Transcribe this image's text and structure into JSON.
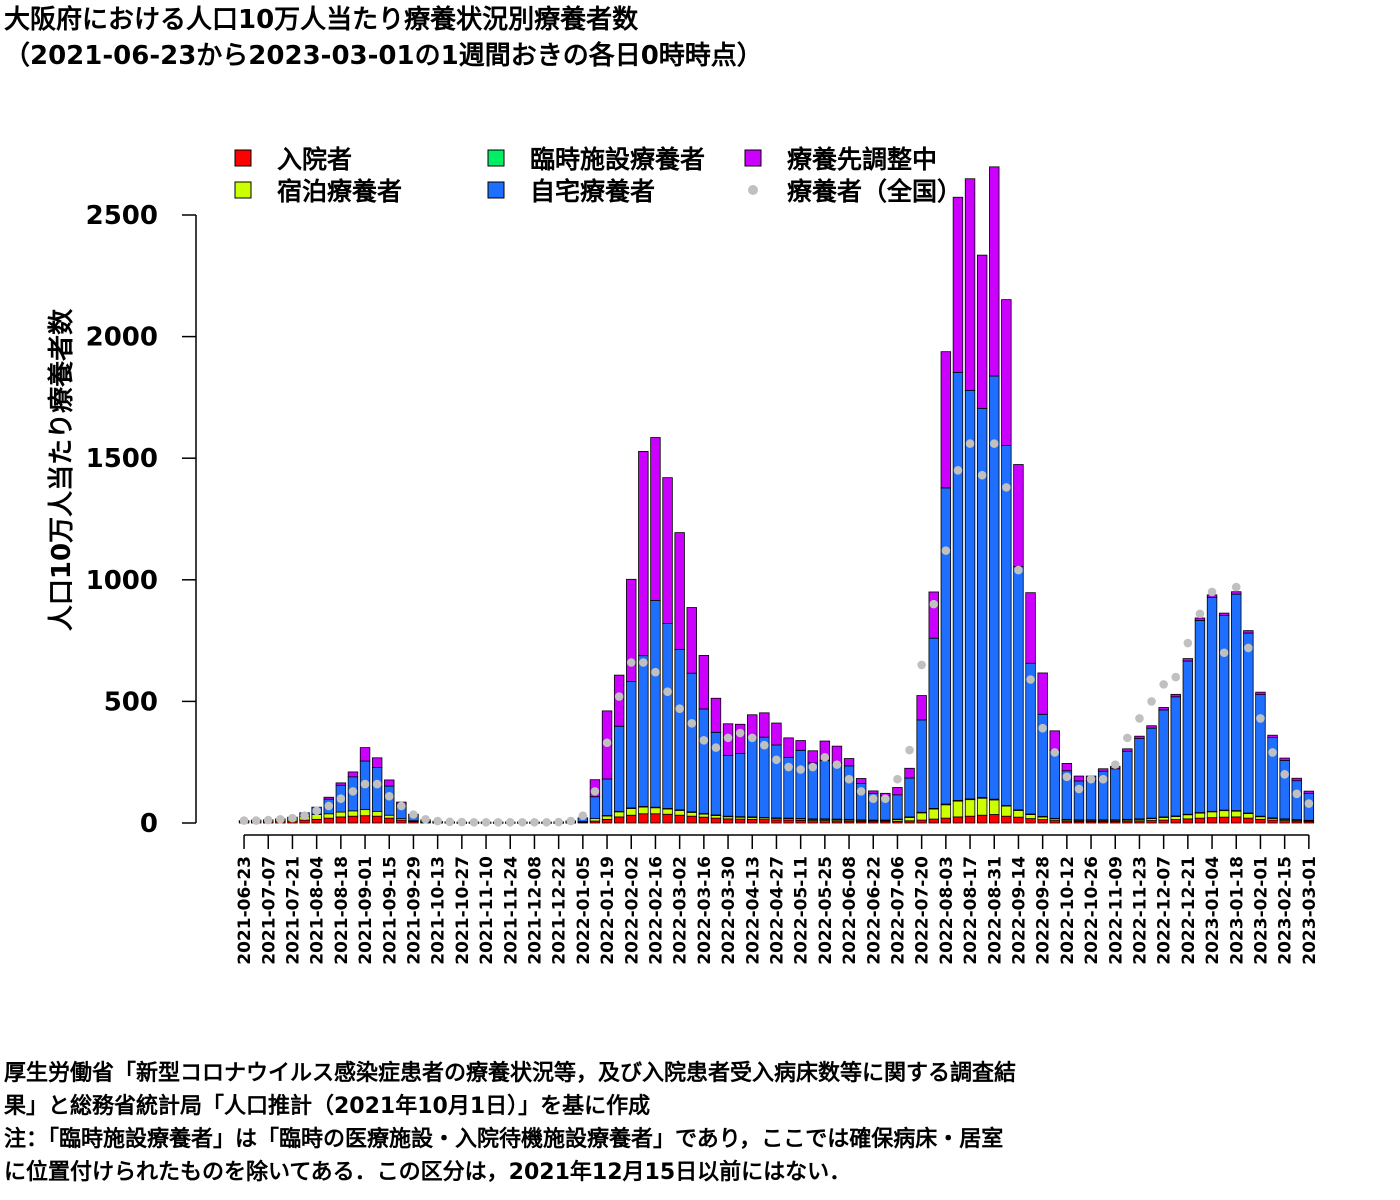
{
  "title": {
    "line1": "大阪府における人口10万人当たり療養状況別療養者数",
    "line2": "（2021-06-23から2023-03-01の1週間おきの各日0時時点）"
  },
  "notes": {
    "line1": "厚生労働省「新型コロナウイルス感染症患者の療養状況等，及び入院患者受入病床数等に関する調査結",
    "line2": "果」と総務省統計局「人口推計（2021年10月1日）」を基に作成",
    "line3": "注：「臨時施設療養者」は「臨時の医療施設・入院待機施設療養者」であり，ここでは確保病床・居室",
    "line4": "に位置付けられたものを除いてある．この区分は，2021年12月15日以前にはない．"
  },
  "chart_data": {
    "type": "bar",
    "stacked": true,
    "ylabel": "人口10万人当たり療養者数",
    "ylim": [
      0,
      2600
    ],
    "yticks": [
      0,
      500,
      1000,
      1500,
      2000,
      2500
    ],
    "legend_position": "top",
    "categories": [
      "2021-06-23",
      "2021-06-30",
      "2021-07-07",
      "2021-07-14",
      "2021-07-21",
      "2021-07-28",
      "2021-08-04",
      "2021-08-11",
      "2021-08-18",
      "2021-08-25",
      "2021-09-01",
      "2021-09-08",
      "2021-09-15",
      "2021-09-22",
      "2021-09-29",
      "2021-10-06",
      "2021-10-13",
      "2021-10-20",
      "2021-10-27",
      "2021-11-03",
      "2021-11-10",
      "2021-11-17",
      "2021-11-24",
      "2021-12-01",
      "2021-12-08",
      "2021-12-15",
      "2021-12-22",
      "2021-12-29",
      "2022-01-05",
      "2022-01-12",
      "2022-01-19",
      "2022-01-26",
      "2022-02-02",
      "2022-02-09",
      "2022-02-16",
      "2022-02-23",
      "2022-03-02",
      "2022-03-09",
      "2022-03-16",
      "2022-03-23",
      "2022-03-30",
      "2022-04-06",
      "2022-04-13",
      "2022-04-20",
      "2022-04-27",
      "2022-05-04",
      "2022-05-11",
      "2022-05-18",
      "2022-05-25",
      "2022-06-01",
      "2022-06-08",
      "2022-06-15",
      "2022-06-22",
      "2022-06-29",
      "2022-07-06",
      "2022-07-13",
      "2022-07-20",
      "2022-07-27",
      "2022-08-03",
      "2022-08-10",
      "2022-08-17",
      "2022-08-24",
      "2022-08-31",
      "2022-09-07",
      "2022-09-14",
      "2022-09-21",
      "2022-09-28",
      "2022-10-05",
      "2022-10-12",
      "2022-10-19",
      "2022-10-26",
      "2022-11-02",
      "2022-11-09",
      "2022-11-16",
      "2022-11-23",
      "2022-11-30",
      "2022-12-07",
      "2022-12-14",
      "2022-12-21",
      "2022-12-28",
      "2023-01-04",
      "2023-01-11",
      "2023-01-18",
      "2023-01-25",
      "2023-02-01",
      "2023-02-08",
      "2023-02-15",
      "2023-02-22",
      "2023-03-01"
    ],
    "tick_labels": [
      "2021-06-23",
      "2021-07-07",
      "2021-07-21",
      "2021-08-04",
      "2021-08-18",
      "2021-09-01",
      "2021-09-15",
      "2021-09-29",
      "2021-10-13",
      "2021-10-27",
      "2021-11-10",
      "2021-11-24",
      "2021-12-08",
      "2021-12-22",
      "2022-01-05",
      "2022-01-19",
      "2022-02-02",
      "2022-02-16",
      "2022-03-02",
      "2022-03-16",
      "2022-03-30",
      "2022-04-13",
      "2022-04-27",
      "2022-05-11",
      "2022-05-25",
      "2022-06-08",
      "2022-06-22",
      "2022-07-06",
      "2022-07-20",
      "2022-08-03",
      "2022-08-17",
      "2022-08-31",
      "2022-09-14",
      "2022-09-28",
      "2022-10-12",
      "2022-10-26",
      "2022-11-09",
      "2022-11-23",
      "2022-12-07",
      "2022-12-21",
      "2023-01-04",
      "2023-01-18",
      "2023-02-01",
      "2023-02-15",
      "2023-03-01"
    ],
    "series": [
      {
        "name": "入院者",
        "color": "#ff0000",
        "values": [
          5,
          5,
          5,
          6,
          8,
          12,
          15,
          20,
          25,
          28,
          30,
          28,
          20,
          12,
          6,
          3,
          2,
          2,
          1,
          1,
          1,
          1,
          1,
          1,
          1,
          1,
          1,
          2,
          3,
          8,
          15,
          25,
          32,
          38,
          38,
          36,
          32,
          28,
          24,
          20,
          17,
          16,
          15,
          14,
          13,
          12,
          11,
          10,
          10,
          9,
          8,
          7,
          6,
          6,
          7,
          9,
          12,
          16,
          20,
          25,
          28,
          32,
          35,
          28,
          24,
          18,
          14,
          10,
          8,
          7,
          7,
          7,
          7,
          8,
          9,
          10,
          12,
          14,
          17,
          20,
          22,
          24,
          25,
          20,
          15,
          12,
          10,
          8,
          6
        ]
      },
      {
        "name": "宿泊療養者",
        "color": "#ccff00",
        "values": [
          3,
          4,
          5,
          6,
          8,
          15,
          20,
          18,
          20,
          22,
          25,
          20,
          12,
          6,
          3,
          2,
          1,
          1,
          1,
          1,
          1,
          1,
          1,
          1,
          1,
          1,
          1,
          2,
          3,
          10,
          15,
          22,
          28,
          28,
          25,
          22,
          20,
          16,
          14,
          12,
          10,
          9,
          9,
          8,
          7,
          7,
          7,
          6,
          6,
          6,
          6,
          5,
          5,
          5,
          8,
          15,
          30,
          42,
          55,
          65,
          68,
          70,
          60,
          42,
          28,
          18,
          12,
          8,
          6,
          5,
          5,
          5,
          5,
          6,
          7,
          9,
          12,
          14,
          18,
          22,
          25,
          28,
          25,
          20,
          12,
          8,
          6,
          5,
          4
        ]
      },
      {
        "name": "臨時施設療養者",
        "color": "#00ee66",
        "values": [
          0,
          0,
          0,
          0,
          0,
          0,
          0,
          0,
          0,
          0,
          0,
          0,
          0,
          0,
          0,
          0,
          0,
          0,
          0,
          0,
          0,
          0,
          0,
          0,
          0,
          0,
          0,
          0,
          0,
          0,
          1,
          1,
          2,
          2,
          2,
          2,
          2,
          2,
          1,
          1,
          1,
          1,
          1,
          1,
          1,
          1,
          1,
          1,
          1,
          1,
          1,
          1,
          1,
          1,
          1,
          1,
          2,
          2,
          3,
          3,
          3,
          3,
          3,
          2,
          2,
          1,
          1,
          1,
          1,
          1,
          1,
          1,
          1,
          1,
          1,
          1,
          1,
          1,
          1,
          1,
          1,
          1,
          1,
          1,
          1,
          1,
          1,
          1,
          1
        ]
      },
      {
        "name": "自宅療養者",
        "color": "#1e6fff",
        "values": [
          2,
          3,
          3,
          5,
          8,
          15,
          30,
          60,
          110,
          140,
          200,
          180,
          120,
          60,
          25,
          8,
          4,
          2,
          2,
          2,
          2,
          2,
          2,
          2,
          2,
          2,
          3,
          5,
          15,
          90,
          150,
          350,
          520,
          620,
          850,
          760,
          660,
          570,
          430,
          340,
          250,
          260,
          320,
          330,
          300,
          250,
          280,
          230,
          240,
          230,
          220,
          150,
          110,
          100,
          100,
          160,
          380,
          700,
          1300,
          1760,
          1680,
          1600,
          1740,
          1480,
          1000,
          620,
          420,
          280,
          200,
          160,
          160,
          200,
          210,
          280,
          330,
          370,
          440,
          490,
          630,
          790,
          880,
          800,
          890,
          740,
          500,
          330,
          240,
          160,
          110
        ]
      },
      {
        "name": "療養先調整中",
        "color": "#cc00ff",
        "values": [
          0,
          0,
          0,
          0,
          0,
          0,
          0,
          8,
          10,
          20,
          55,
          40,
          25,
          8,
          2,
          0,
          0,
          0,
          0,
          0,
          0,
          0,
          0,
          0,
          0,
          0,
          0,
          0,
          0,
          70,
          280,
          210,
          420,
          840,
          670,
          600,
          480,
          270,
          220,
          140,
          130,
          120,
          100,
          100,
          90,
          80,
          40,
          50,
          80,
          70,
          30,
          20,
          10,
          10,
          30,
          40,
          100,
          190,
          560,
          720,
          870,
          630,
          860,
          600,
          420,
          290,
          170,
          80,
          30,
          20,
          20,
          10,
          10,
          10,
          10,
          10,
          10,
          10,
          10,
          10,
          10,
          10,
          10,
          10,
          10,
          10,
          10,
          10,
          10
        ]
      }
    ],
    "national": {
      "name": "療養者（全国）",
      "color": "#c0c0c0",
      "values": [
        10,
        10,
        12,
        15,
        20,
        30,
        50,
        70,
        100,
        130,
        160,
        160,
        110,
        70,
        35,
        15,
        8,
        5,
        4,
        3,
        3,
        3,
        3,
        3,
        3,
        3,
        4,
        8,
        30,
        130,
        330,
        520,
        660,
        660,
        620,
        540,
        470,
        410,
        340,
        310,
        350,
        370,
        350,
        320,
        260,
        230,
        220,
        230,
        270,
        240,
        180,
        130,
        100,
        100,
        180,
        300,
        650,
        900,
        1120,
        1450,
        1560,
        1430,
        1560,
        1380,
        1040,
        590,
        390,
        290,
        190,
        140,
        180,
        180,
        240,
        350,
        430,
        500,
        570,
        600,
        740,
        860,
        950,
        700,
        970,
        720,
        430,
        290,
        200,
        120,
        80
      ]
    }
  }
}
